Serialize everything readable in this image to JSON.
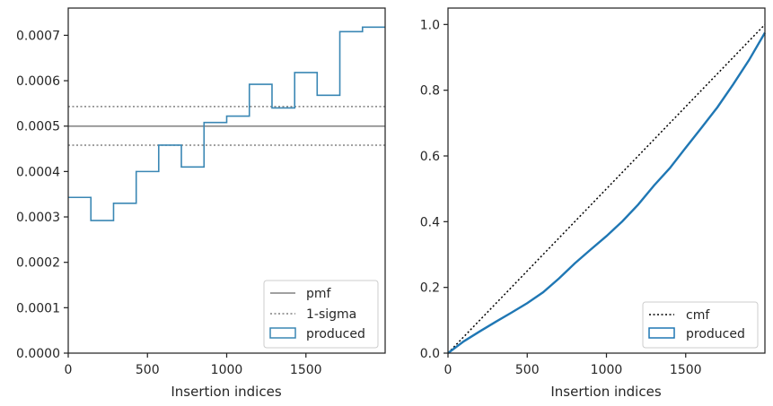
{
  "chart_data": [
    {
      "type": "histogram",
      "xlabel": "Insertion indices",
      "ylabel": "",
      "xlim": [
        0,
        2000
      ],
      "ylim": [
        0,
        0.00076
      ],
      "xticks": [
        0,
        500,
        1000,
        1500
      ],
      "yticks": [
        0.0,
        0.0001,
        0.0002,
        0.0003,
        0.0004,
        0.0005,
        0.0006,
        0.0007
      ],
      "ytick_labels": [
        "0.0000",
        "0.0001",
        "0.0002",
        "0.0003",
        "0.0004",
        "0.0005",
        "0.0006",
        "0.0007"
      ],
      "pmf": 0.0005,
      "sigma_band": [
        0.000458,
        0.000543
      ],
      "bins": [
        0,
        143,
        286,
        429,
        571,
        714,
        857,
        1000,
        1143,
        1286,
        1429,
        1571,
        1714,
        1857,
        2000
      ],
      "values": [
        0.000343,
        0.000292,
        0.00033,
        0.0004,
        0.000458,
        0.00041,
        0.000508,
        0.000522,
        0.000592,
        0.00054,
        0.000618,
        0.000568,
        0.000708,
        0.000718
      ],
      "colors": {
        "produced": "#3a87b4",
        "pmf": "#808080",
        "sigma": "#808080"
      },
      "legend": {
        "placement": "lower-right",
        "entries": [
          "pmf",
          "1-sigma",
          "produced"
        ]
      },
      "grid": false
    },
    {
      "type": "line",
      "xlabel": "Insertion indices",
      "ylabel": "",
      "xlim": [
        0,
        2000
      ],
      "ylim": [
        0,
        1.05
      ],
      "xticks": [
        0,
        500,
        1000,
        1500
      ],
      "yticks": [
        0.0,
        0.2,
        0.4,
        0.6,
        0.8,
        1.0
      ],
      "ytick_labels": [
        "0.0",
        "0.2",
        "0.4",
        "0.6",
        "0.8",
        "1.0"
      ],
      "series": [
        {
          "name": "cmf",
          "x": [
            0,
            2000
          ],
          "y": [
            0,
            1.0
          ],
          "style": "dotted",
          "color": "#000000"
        },
        {
          "name": "produced",
          "style": "step",
          "color": "#1f77b4",
          "x": [
            0,
            100,
            200,
            300,
            400,
            500,
            600,
            700,
            800,
            900,
            1000,
            1100,
            1200,
            1300,
            1400,
            1500,
            1600,
            1700,
            1800,
            1900,
            2000
          ],
          "y": [
            0,
            0.036,
            0.066,
            0.095,
            0.123,
            0.152,
            0.185,
            0.227,
            0.273,
            0.315,
            0.356,
            0.401,
            0.452,
            0.51,
            0.563,
            0.625,
            0.686,
            0.748,
            0.818,
            0.892,
            0.975
          ]
        }
      ],
      "legend": {
        "placement": "lower-right",
        "entries": [
          "cmf",
          "produced"
        ]
      },
      "grid": false
    }
  ]
}
